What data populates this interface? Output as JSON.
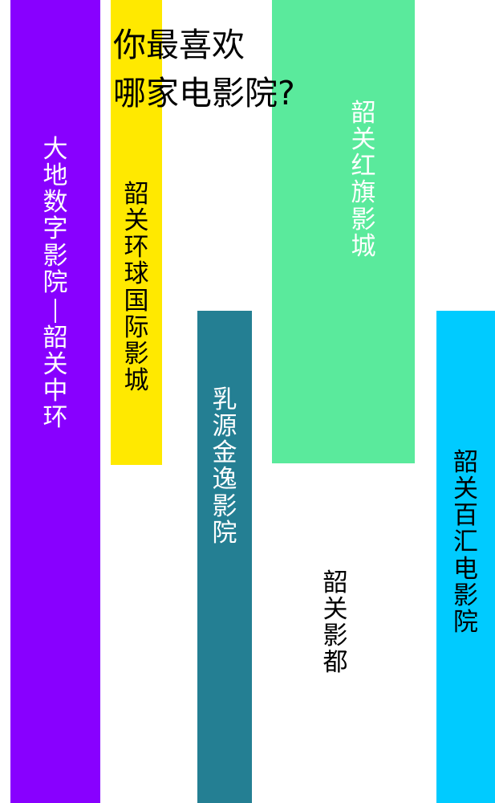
{
  "title": {
    "line1": "你最喜欢",
    "line2": "哪家电影院?"
  },
  "colors": {
    "purple": "#8800ff",
    "yellow": "#ffe900",
    "teal": "#247f93",
    "green": "#5aea9c",
    "blue": "#00cbff",
    "text_light": "#ffffff",
    "text_dark": "#000000"
  },
  "cinemas": [
    {
      "name": "大地数字影院—韶关中环"
    },
    {
      "name": "韶关环球国际影城"
    },
    {
      "name": "乳源金逸影院"
    },
    {
      "name": "韶关红旗影城"
    },
    {
      "name": "韶关影都"
    },
    {
      "name": "韶关百汇电影院"
    }
  ]
}
